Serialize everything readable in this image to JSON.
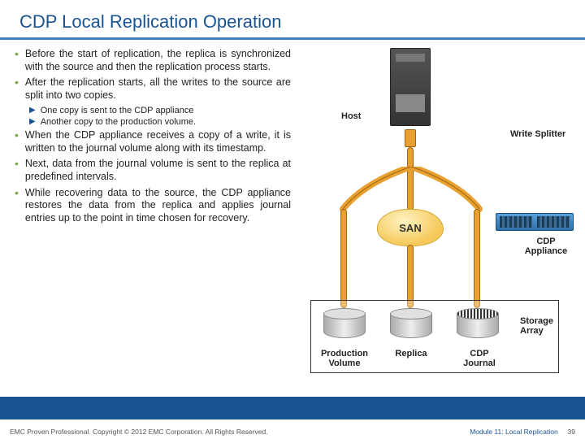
{
  "title": "CDP Local Replication Operation",
  "bullets": [
    {
      "level": 1,
      "text": "Before the start of replication, the replica is synchronized with the source and then the replication process starts."
    },
    {
      "level": 1,
      "text": "After the replication starts, all the writes to the source are split into two copies."
    },
    {
      "level": 2,
      "text": "One copy is sent to the CDP appliance"
    },
    {
      "level": 2,
      "text": "Another copy to the production volume."
    },
    {
      "level": 1,
      "text": "When the CDP appliance receives a copy of a write, it is written to the journal volume along with its timestamp."
    },
    {
      "level": 1,
      "text": "Next, data from the journal volume is sent to the replica at predefined intervals."
    },
    {
      "level": 1,
      "text": "While recovering data to the source, the CDP appliance restores the data from the replica and applies journal entries up to the point in time chosen for recovery."
    }
  ],
  "labels": {
    "host": "Host",
    "splitter": "Write Splitter",
    "san": "SAN",
    "appliance": "CDP Appliance",
    "array": "Storage Array",
    "prod": "Production Volume",
    "replica": "Replica",
    "journal": "CDP Journal"
  },
  "colors": {
    "accent": "#1a5490",
    "bullet": "#7aa84f",
    "pipe": "#e8a030"
  },
  "footer": {
    "left": "EMC Proven Professional. Copyright © 2012 EMC Corporation. All Rights Reserved.",
    "module": "Module 11: Local Replication",
    "page": "39"
  }
}
